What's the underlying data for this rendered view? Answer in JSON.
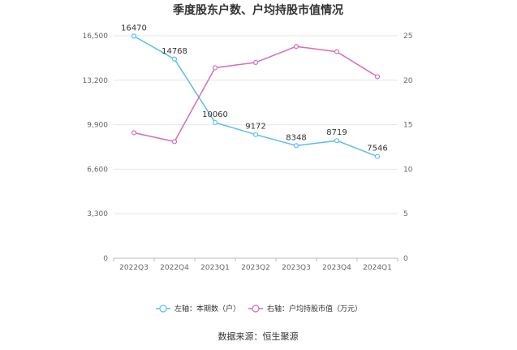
{
  "chart_data": {
    "type": "line",
    "title": "季度股东户数、户均持股市值情况",
    "categories": [
      "2022Q3",
      "2022Q4",
      "2023Q1",
      "2023Q2",
      "2023Q3",
      "2023Q4",
      "2024Q1"
    ],
    "left_axis": {
      "ticks": [
        "0",
        "3,300",
        "6,600",
        "9,900",
        "13,200",
        "16,500"
      ],
      "ylim": [
        0,
        16500
      ]
    },
    "right_axis": {
      "ticks": [
        "0",
        "5",
        "10",
        "15",
        "20",
        "25"
      ],
      "ylim": [
        0,
        25
      ]
    },
    "series": [
      {
        "name": "左轴：本期数（户）",
        "axis": "left",
        "color": "#5bbfea",
        "values": [
          16470,
          14768,
          10060,
          9172,
          8348,
          8719,
          7546
        ],
        "labels": [
          "16470",
          "14768",
          "10060",
          "9172",
          "8348",
          "8719",
          "7546"
        ]
      },
      {
        "name": "右轴：户均持股市值（万元）",
        "axis": "right",
        "color": "#d46eb4",
        "values": [
          14.1,
          13.1,
          21.4,
          22.0,
          23.8,
          23.2,
          20.4
        ]
      }
    ],
    "grid": true,
    "legend_position": "bottom"
  },
  "source": "数据来源：恒生聚源"
}
